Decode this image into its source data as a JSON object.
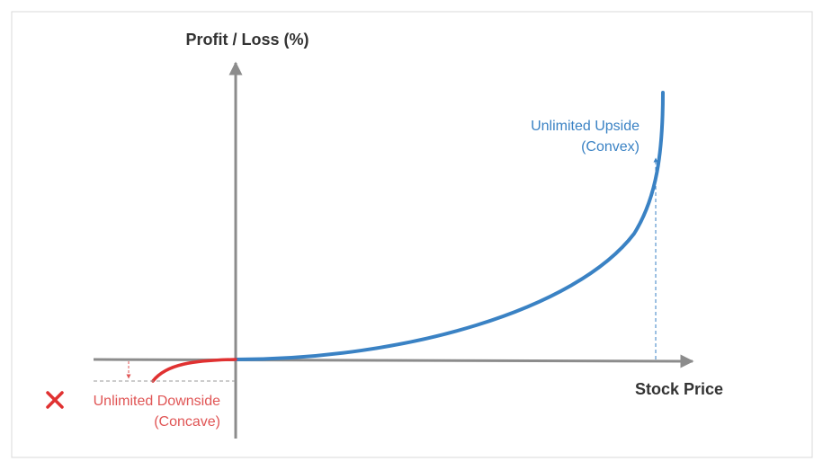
{
  "y_axis": {
    "label": "Profit / Loss (%)"
  },
  "x_axis": {
    "label": "Stock Price"
  },
  "upside": {
    "line1": "Unlimited Upside",
    "line2": "(Convex)",
    "color": "#3a82c4"
  },
  "downside": {
    "line1": "Unlimited Downside",
    "line2": "(Concave)",
    "color": "#e03131",
    "text_color": "#e05555",
    "icon": "cross-mark-icon"
  },
  "axis_color": "#8c8c8c",
  "frame_color": "#d9d9d9"
}
